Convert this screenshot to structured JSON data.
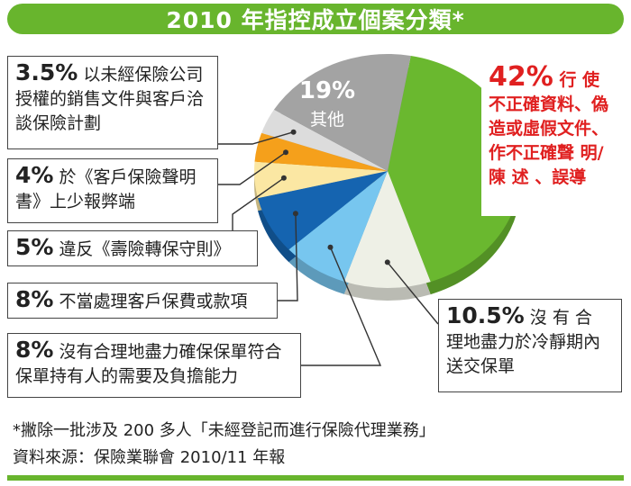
{
  "title": "2010 年指控成立個案分類*",
  "chart_data": {
    "type": "pie",
    "slices": [
      {
        "key": "s42",
        "value": 42,
        "pct_label": "42%",
        "label": "行 使不正確資料、偽造或虛假文件、作不正確聲 明/陳 述 、誤導",
        "color": "#6ab82f"
      },
      {
        "key": "s105",
        "value": 10.5,
        "pct_label": "10.5%",
        "label": "沒有合理地盡力於冷靜期內送交保單",
        "color": "#eef0e6"
      },
      {
        "key": "s8b",
        "value": 8,
        "pct_label": "8%",
        "label": "沒有合理地盡力確保保單符合保單持有人的需要及負擔能力",
        "color": "#77c6ef"
      },
      {
        "key": "s8a",
        "value": 8,
        "pct_label": "8%",
        "label": "不當處理客戶保費或款項",
        "color": "#1564b0"
      },
      {
        "key": "s5",
        "value": 5,
        "pct_label": "5%",
        "label": "違反《壽險轉保守則》",
        "color": "#fbe7a3"
      },
      {
        "key": "s4",
        "value": 4,
        "pct_label": "4%",
        "label": "於《客戶保險聲明書》上少報弊端",
        "color": "#f5a01b"
      },
      {
        "key": "s35",
        "value": 3.5,
        "pct_label": "3.5%",
        "label": "以未經保險公司授權的銷售文件與客戶洽談保險計劃",
        "color": "#dcdcdc"
      },
      {
        "key": "s19",
        "value": 19,
        "pct_label": "19%",
        "label": "其他",
        "color": "#a3a3a3"
      }
    ]
  },
  "callouts": {
    "s42": {
      "pct": "42%",
      "text": "行 使不正確資料、偽造或虛假文件、作不正確聲 明/陳 述 、誤導"
    },
    "s105": {
      "pct": "10.5%",
      "text": "沒 有 合 理地盡力於冷靜期內送交保單"
    },
    "s8b": {
      "pct": "8%",
      "text": "沒有合理地盡力確保保單符合保單持有人的需要及負擔能力"
    },
    "s8a": {
      "pct": "8%",
      "text": "不當處理客戶保費或款項"
    },
    "s5": {
      "pct": "5%",
      "text": "違反《壽險轉保守則》"
    },
    "s4": {
      "pct": "4%",
      "text": "於《客戶保險聲明書》上少報弊端"
    },
    "s35": {
      "pct": "3.5%",
      "text": "以未經保險公司授權的銷售文件與客戶洽談保險計劃"
    },
    "s19": {
      "pct": "19%",
      "text": "其他"
    }
  },
  "footnote": "*撇除一批涉及 200 多人「未經登記而進行保險代理業務」",
  "source": "資料來源：保險業聯會 2010/11 年報"
}
